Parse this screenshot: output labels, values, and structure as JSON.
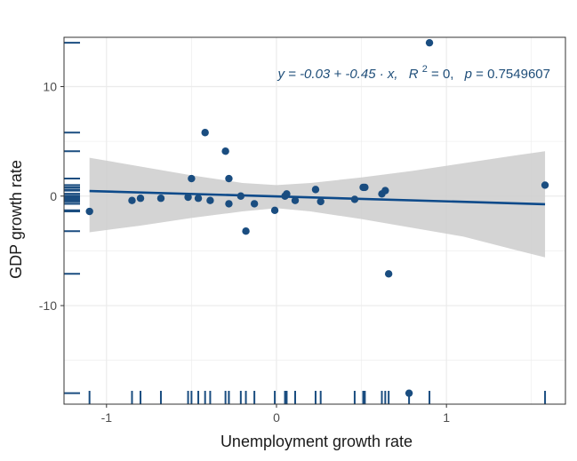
{
  "chart_data": {
    "type": "scatter",
    "xlabel": "Unemployment growth rate",
    "ylabel": "GDP growth rate",
    "xlim": [
      -1.25,
      1.7
    ],
    "ylim": [
      -19,
      14.5
    ],
    "x_ticks": [
      -1,
      0,
      1
    ],
    "y_ticks": [
      -10,
      0,
      10
    ],
    "x_tick_labels": [
      "-1",
      "0",
      "1"
    ],
    "y_tick_labels": [
      "-10",
      "0",
      "10"
    ],
    "grid": true,
    "rug": true,
    "annotation": {
      "lhs": "y = -0.03 + -0.45 · x,",
      "r2_label": "R",
      "r2_exp": "2",
      "r2_value": " = 0,",
      "p_label": "p",
      "p_value": " = 0.7549607"
    },
    "regression": {
      "intercept": -0.03,
      "slope": -0.45
    },
    "confidence_band": {
      "x": [
        -1.1,
        -0.8,
        -0.5,
        -0.2,
        0.0,
        0.2,
        0.5,
        0.8,
        1.1,
        1.4,
        1.58
      ],
      "upper": [
        3.5,
        2.7,
        1.9,
        1.2,
        1.0,
        1.2,
        1.7,
        2.3,
        3.0,
        3.7,
        4.1
      ],
      "lower": [
        -3.3,
        -2.7,
        -2.0,
        -1.4,
        -1.1,
        -1.4,
        -2.1,
        -2.9,
        -3.7,
        -4.9,
        -5.6
      ]
    },
    "x": [
      -1.1,
      -0.85,
      -0.8,
      -0.68,
      -0.52,
      -0.5,
      -0.46,
      -0.42,
      -0.39,
      -0.3,
      -0.28,
      -0.28,
      -0.21,
      -0.18,
      -0.13,
      -0.01,
      0.05,
      0.06,
      0.11,
      0.23,
      0.26,
      0.46,
      0.51,
      0.52,
      0.62,
      0.64,
      0.66,
      0.78,
      0.9,
      1.58
    ],
    "y": [
      -1.4,
      -0.4,
      -0.2,
      -0.2,
      -0.1,
      1.6,
      -0.2,
      5.8,
      -0.4,
      4.1,
      -0.7,
      1.6,
      0.0,
      -3.2,
      -0.7,
      -1.3,
      0.0,
      0.2,
      -0.4,
      0.6,
      -0.5,
      -0.3,
      0.8,
      0.8,
      0.2,
      0.5,
      -7.1,
      -18.0,
      14.0,
      1.0
    ],
    "colors": {
      "point": "#1a4d80",
      "line": "#0d4a8a",
      "band": "#cccccc",
      "rug": "#1a4d80",
      "grid": "#ebebeb",
      "panel_border": "#333333"
    }
  }
}
